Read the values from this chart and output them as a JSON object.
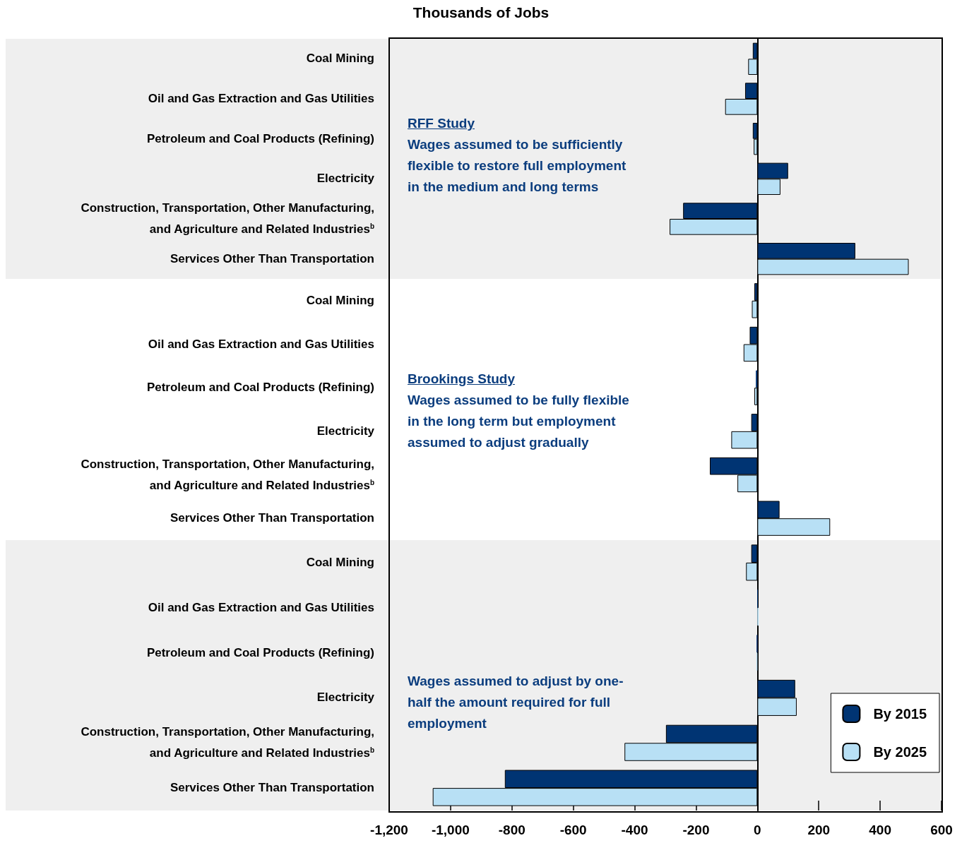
{
  "chart_data": [
    {
      "type": "bar",
      "orientation": "horizontal",
      "title": "Thousands of Jobs",
      "tick_labels": "y",
      "legend": false,
      "categories": [
        "Coal Mining",
        "Oil and Gas Extraction and Gas Utilities",
        "Petroleum and Coal Products (Refining)",
        "Electricity",
        "Construction, Transportation, Other Manufacturing, and Agriculture and Related Industries$^{b}$",
        "Services Other Than Transportation"
      ],
      "xlim": [
        -1200,
        600
      ],
      "annotations": [
        "RFF Study",
        "Wages assumed to be sufficiently flexible to restore full employment in the medium and long terms"
      ],
      "series": [
        {
          "color": "#003473",
          "values": [
            -15,
            -40,
            -15,
            100,
            -242,
            319
          ]
        },
        {
          "color": "#b8e0f5",
          "values": [
            -30,
            -105,
            -12,
            75,
            -286,
            493
          ]
        }
      ]
    },
    {
      "type": "bar",
      "orientation": "horizontal",
      "tick_labels": "y",
      "legend": false,
      "categories": [
        "Coal Mining",
        "Oil and Gas Extraction and Gas Utilities",
        "Petroleum and Coal Products (Refining)",
        "Electricity",
        "Construction, Transportation, Other Manufacturing, and Agriculture and Related Industries$^{b}$",
        "Services Other Than Transportation"
      ],
      "xlim": [
        -1200,
        600
      ],
      "annotations": [
        "Brookings Study",
        "Wages assumed to be fully flexible in the long term but employment assumed to adjust gradually"
      ],
      "series": [
        {
          "color": "#003473",
          "values": [
            -10,
            -25,
            -5,
            -20,
            -155,
            72
          ]
        },
        {
          "color": "#b8e0f5",
          "values": [
            -18,
            -45,
            -10,
            -85,
            -65,
            237
          ]
        }
      ]
    },
    {
      "type": "bar",
      "orientation": "horizontal",
      "legend": "bottom right",
      "categories": [
        "Coal Mining",
        "Oil and Gas Extraction and Gas Utilities",
        "Petroleum and Coal Products (Refining)",
        "Electricity",
        "Construction, Transportation, Other Manufacturing, and Agriculture and Related Industries$^{b}$",
        "Services Other Than Transportation"
      ],
      "xlim": [
        -1200,
        600
      ],
      "xticks": [
        {
          "value": -1200,
          "label": "-1,200"
        },
        {
          "value": -1000,
          "label": "-1,000"
        },
        -800,
        -600,
        -400,
        -200,
        0,
        200,
        400,
        600
      ],
      "annotations": [
        "Wages assumed to adjust by one-half the amount required for full employment"
      ],
      "series": [
        {
          "name": "By 2015",
          "color": "#003473",
          "values": [
            -20,
            1,
            -2,
            123,
            -298,
            -823
          ]
        },
        {
          "name": "By 2025",
          "color": "#b8e0f5",
          "values": [
            -37,
            4,
            -3,
            128,
            -433,
            -1058
          ]
        }
      ]
    }
  ]
}
